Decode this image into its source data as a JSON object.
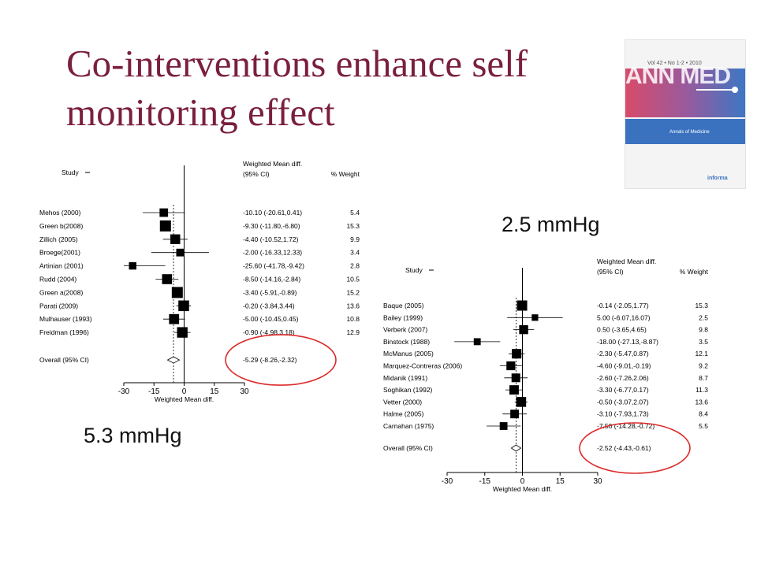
{
  "slide": {
    "title": "Co-interventions enhance self monitoring effect",
    "callout_left": "5.3 mmHg",
    "callout_right": "2.5 mmHg",
    "highlight_color": "#dd2a2a",
    "title_color": "#7a1f3d"
  },
  "journal_cover": {
    "logo": "ANN MED",
    "issue": "Vol 42 • No 1-2 • 2010",
    "journal_name": "Annals of Medicine",
    "publisher": "informa"
  },
  "chart_data": [
    {
      "type": "forest",
      "header_study": "Study",
      "header_effect_line1": "Weighted Mean diff.",
      "header_effect_line2": "(95% CI)",
      "header_weight": "% Weight",
      "xlabel": "Weighted Mean diff.",
      "xlim": [
        -30,
        30
      ],
      "xticks": [
        -30,
        -15,
        0,
        15,
        30
      ],
      "studies": [
        {
          "label": "Mehos (2000)",
          "estimate": -10.1,
          "lower": -20.61,
          "upper": 0.41,
          "ci_text": "-10.10 (-20.61,0.41)",
          "weight": "5.4"
        },
        {
          "label": "Green b(2008)",
          "estimate": -9.3,
          "lower": -11.8,
          "upper": -6.8,
          "ci_text": "-9.30 (-11.80,-6.80)",
          "weight": "15.3"
        },
        {
          "label": "Zillich (2005)",
          "estimate": -4.4,
          "lower": -10.52,
          "upper": 1.72,
          "ci_text": "-4.40 (-10.52,1.72)",
          "weight": "9.9"
        },
        {
          "label": "Broege(2001)",
          "estimate": -2.0,
          "lower": -16.33,
          "upper": 12.33,
          "ci_text": "-2.00 (-16.33,12.33)",
          "weight": "3.4"
        },
        {
          "label": "Artinian (2001)",
          "estimate": -25.6,
          "lower": -41.78,
          "upper": -9.42,
          "ci_text": "-25.60 (-41.78,-9.42)",
          "weight": "2.8"
        },
        {
          "label": "Rudd (2004)",
          "estimate": -8.5,
          "lower": -14.16,
          "upper": -2.84,
          "ci_text": "-8.50 (-14.16,-2.84)",
          "weight": "10.5"
        },
        {
          "label": "Green a(2008)",
          "estimate": -3.4,
          "lower": -5.91,
          "upper": -0.89,
          "ci_text": "-3.40 (-5.91,-0.89)",
          "weight": "15.2"
        },
        {
          "label": "Parati (2009)",
          "estimate": -0.2,
          "lower": -3.84,
          "upper": 3.44,
          "ci_text": "-0.20 (-3.84,3.44)",
          "weight": "13.6"
        },
        {
          "label": "Mulhauser (1993)",
          "estimate": -5.0,
          "lower": -10.45,
          "upper": 0.45,
          "ci_text": "-5.00 (-10.45,0.45)",
          "weight": "10.8"
        },
        {
          "label": "Freidman (1996)",
          "estimate": -0.9,
          "lower": -4.98,
          "upper": 3.18,
          "ci_text": "-0.90 (-4.98,3.18)",
          "weight": "12.9"
        }
      ],
      "overall": {
        "label": "Overall (95% CI)",
        "estimate": -5.29,
        "lower": -8.26,
        "upper": -2.32,
        "ci_text": "-5.29 (-8.26,-2.32)"
      }
    },
    {
      "type": "forest",
      "header_study": "Study",
      "header_effect_line1": "Weighted Mean diff.",
      "header_effect_line2": "(95% CI)",
      "header_weight": "% Weight",
      "xlabel": "Weighted Mean diff.",
      "xlim": [
        -30,
        30
      ],
      "xticks": [
        -30,
        -15,
        0,
        15,
        30
      ],
      "studies": [
        {
          "label": "Baque (2005)",
          "estimate": -0.14,
          "lower": -2.05,
          "upper": 1.77,
          "ci_text": "-0.14 (-2.05,1.77)",
          "weight": "15.3"
        },
        {
          "label": "Bailey (1999)",
          "estimate": 5.0,
          "lower": -6.07,
          "upper": 16.07,
          "ci_text": "5.00 (-6.07,16.07)",
          "weight": "2.5"
        },
        {
          "label": "Verberk (2007)",
          "estimate": 0.5,
          "lower": -3.65,
          "upper": 4.65,
          "ci_text": "0.50 (-3.65,4.65)",
          "weight": "9.8"
        },
        {
          "label": "Binstock (1988)",
          "estimate": -18.0,
          "lower": -27.13,
          "upper": -8.87,
          "ci_text": "-18.00 (-27.13,-8.87)",
          "weight": "3.5"
        },
        {
          "label": "McManus (2005)",
          "estimate": -2.3,
          "lower": -5.47,
          "upper": 0.87,
          "ci_text": "-2.30 (-5.47,0.87)",
          "weight": "12.1"
        },
        {
          "label": "Marquez-Contreras (2006)",
          "estimate": -4.6,
          "lower": -9.01,
          "upper": -0.19,
          "ci_text": "-4.60 (-9.01,-0.19)",
          "weight": "9.2"
        },
        {
          "label": "Midanik (1991)",
          "estimate": -2.6,
          "lower": -7.26,
          "upper": 2.06,
          "ci_text": "-2.60 (-7.26,2.06)",
          "weight": "8.7"
        },
        {
          "label": "Soghikan (1992)",
          "estimate": -3.3,
          "lower": -6.77,
          "upper": 0.17,
          "ci_text": "-3.30 (-6.77,0.17)",
          "weight": "11.3"
        },
        {
          "label": "Vetter (2000)",
          "estimate": -0.5,
          "lower": -3.07,
          "upper": 2.07,
          "ci_text": "-0.50 (-3.07,2.07)",
          "weight": "13.6"
        },
        {
          "label": "Halme (2005)",
          "estimate": -3.1,
          "lower": -7.93,
          "upper": 1.73,
          "ci_text": "-3.10 (-7.93,1.73)",
          "weight": "8.4"
        },
        {
          "label": "Carnahan (1975)",
          "estimate": -7.5,
          "lower": -14.28,
          "upper": -0.72,
          "ci_text": "-7.50 (-14.28,-0.72)",
          "weight": "5.5"
        }
      ],
      "overall": {
        "label": "Overall (95% CI)",
        "estimate": -2.52,
        "lower": -4.43,
        "upper": -0.61,
        "ci_text": "-2.52 (-4.43,-0.61)"
      }
    }
  ]
}
